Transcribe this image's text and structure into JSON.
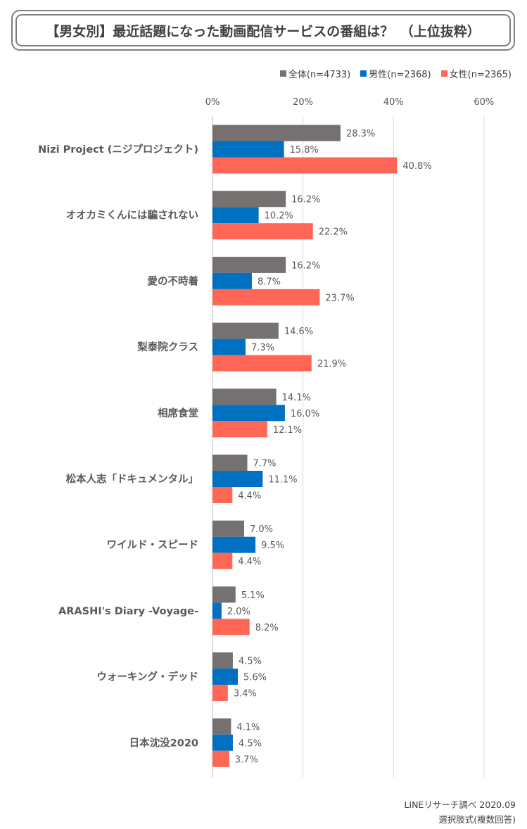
{
  "title": "【男女別】最近話題になった動画配信サービスの番組は？　（上位抜粋）",
  "legend": [
    {
      "label": "全体(n=4733)",
      "color": "#767171"
    },
    {
      "label": "男性(n=2368)",
      "color": "#0070c0"
    },
    {
      "label": "女性(n=2365)",
      "color": "#ff6655"
    }
  ],
  "footer": {
    "source": "LINEリサーチ調べ 2020.09",
    "method": "選択肢式(複数回答)"
  },
  "chart_data": {
    "type": "bar",
    "orientation": "horizontal",
    "title": "【男女別】最近話題になった動画配信サービスの番組は？　（上位抜粋）",
    "xlim": [
      0,
      60
    ],
    "xticks": [
      "0%",
      "20%",
      "40%",
      "60%"
    ],
    "tick_values": [
      0,
      20,
      40,
      60
    ],
    "categories": [
      "Nizi Project (ニジプロジェクト)",
      "オオカミくんには騙されない",
      "愛の不時着",
      "梨泰院クラス",
      "相席食堂",
      "松本人志「ドキュメンタル」",
      "ワイルド・スピード",
      "ARASHI's Diary -Voyage-",
      "ウォーキング・デッド",
      "日本沈没2020"
    ],
    "series": [
      {
        "name": "全体(n=4733)",
        "color": "#767171",
        "values": [
          28.3,
          16.2,
          16.2,
          14.6,
          14.1,
          7.7,
          7.0,
          5.1,
          4.5,
          4.1
        ]
      },
      {
        "name": "男性(n=2368)",
        "color": "#0070c0",
        "values": [
          15.8,
          10.2,
          8.7,
          7.3,
          16.0,
          11.1,
          9.5,
          2.0,
          5.6,
          4.5
        ]
      },
      {
        "name": "女性(n=2365)",
        "color": "#ff6655",
        "values": [
          40.8,
          22.2,
          23.7,
          21.9,
          12.1,
          4.4,
          4.4,
          8.2,
          3.4,
          3.7
        ]
      }
    ],
    "value_suffix": "%"
  }
}
